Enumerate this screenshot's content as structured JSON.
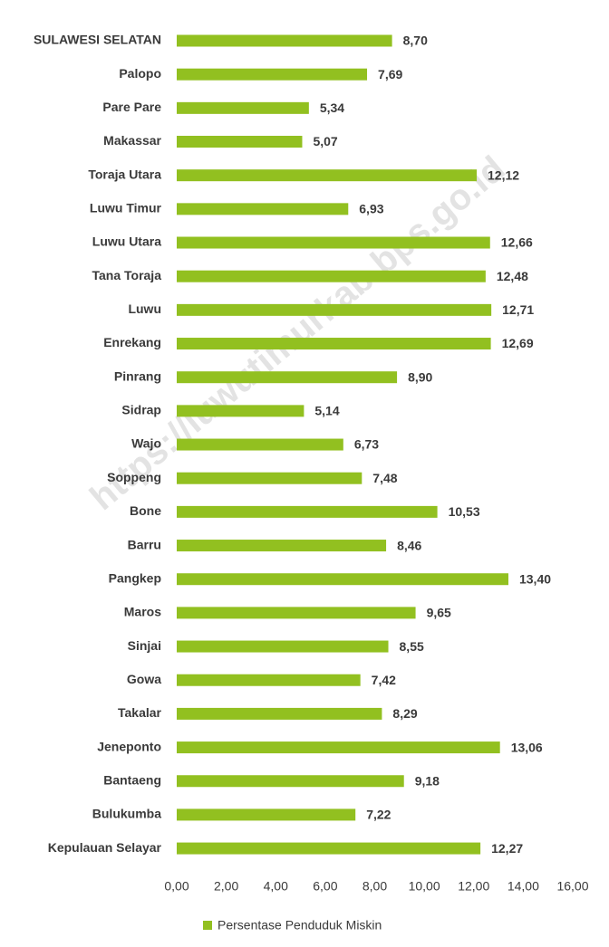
{
  "chart_data": {
    "type": "bar",
    "orientation": "horizontal",
    "categories": [
      "SULAWESI SELATAN",
      "Palopo",
      "Pare Pare",
      "Makassar",
      "Toraja Utara",
      "Luwu Timur",
      "Luwu Utara",
      "Tana Toraja",
      "Luwu",
      "Enrekang",
      "Pinrang",
      "Sidrap",
      "Wajo",
      "Soppeng",
      "Bone",
      "Barru",
      "Pangkep",
      "Maros",
      "Sinjai",
      "Gowa",
      "Takalar",
      "Jeneponto",
      "Bantaeng",
      "Bulukumba",
      "Kepulauan Selayar"
    ],
    "series": [
      {
        "name": "Persentase Penduduk Miskin",
        "color": "#92c020",
        "values": [
          8.7,
          7.69,
          5.34,
          5.07,
          12.12,
          6.93,
          12.66,
          12.48,
          12.71,
          12.69,
          8.9,
          5.14,
          6.73,
          7.48,
          10.53,
          8.46,
          13.4,
          9.65,
          8.55,
          7.42,
          8.29,
          13.06,
          9.18,
          7.22,
          12.27
        ],
        "value_labels": [
          "8,70",
          "7,69",
          "5,34",
          "5,07",
          "12,12",
          "6,93",
          "12,66",
          "12,48",
          "12,71",
          "12,69",
          "8,90",
          "5,14",
          "6,73",
          "7,48",
          "10,53",
          "8,46",
          "13,40",
          "9,65",
          "8,55",
          "7,42",
          "8,29",
          "13,06",
          "9,18",
          "7,22",
          "12,27"
        ]
      }
    ],
    "xlim": [
      0,
      16
    ],
    "xticks": [
      {
        "value": 0,
        "label": "0,00"
      },
      {
        "value": 2,
        "label": "2,00"
      },
      {
        "value": 4,
        "label": "4,00"
      },
      {
        "value": 6,
        "label": "6,00"
      },
      {
        "value": 8,
        "label": "8,00"
      },
      {
        "value": 10,
        "label": "10,00"
      },
      {
        "value": 12,
        "label": "12,00"
      },
      {
        "value": 14,
        "label": "14,00"
      },
      {
        "value": 16,
        "label": "16,00"
      }
    ],
    "legend": "bottom",
    "watermark": "https://luwutimurkab.bps.go.id"
  }
}
